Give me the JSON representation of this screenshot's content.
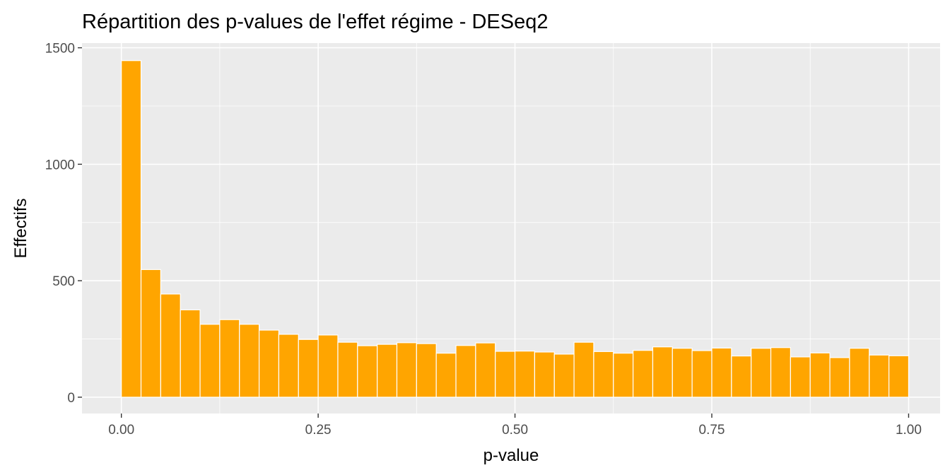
{
  "chart_data": {
    "type": "bar",
    "title": "Répartition des p-values de l'effet régime - DESeq2",
    "xlabel": "p-value",
    "ylabel": "Effectifs",
    "xlim": [
      -0.05,
      1.04
    ],
    "ylim": [
      -70,
      1520
    ],
    "x_ticks": [
      0,
      0.25,
      0.5,
      0.75,
      1.0
    ],
    "x_tick_labels": [
      "0.00",
      "0.25",
      "0.50",
      "0.75",
      "1.00"
    ],
    "y_ticks": [
      0,
      500,
      1000,
      1500
    ],
    "y_tick_labels": [
      "0",
      "500",
      "1000",
      "1500"
    ],
    "bin_width": 0.025,
    "bin_starts": [
      0.0,
      0.025,
      0.05,
      0.075,
      0.1,
      0.125,
      0.15,
      0.175,
      0.2,
      0.225,
      0.25,
      0.275,
      0.3,
      0.325,
      0.35,
      0.375,
      0.4,
      0.425,
      0.45,
      0.475,
      0.5,
      0.525,
      0.55,
      0.575,
      0.6,
      0.625,
      0.65,
      0.675,
      0.7,
      0.725,
      0.75,
      0.775,
      0.8,
      0.825,
      0.85,
      0.875,
      0.9,
      0.925,
      0.95,
      0.975
    ],
    "values": [
      1445,
      548,
      443,
      375,
      313,
      333,
      313,
      288,
      270,
      248,
      267,
      236,
      221,
      227,
      234,
      230,
      189,
      222,
      233,
      197,
      198,
      194,
      185,
      236,
      196,
      189,
      201,
      216,
      210,
      200,
      211,
      177,
      210,
      213,
      173,
      190,
      170,
      210,
      181,
      178
    ],
    "bar_color": "#FFA500",
    "bar_outline": "#FFFFFF",
    "panel_background": "#EBEBEB",
    "grid": true,
    "grid_color": "#FFFFFF"
  }
}
